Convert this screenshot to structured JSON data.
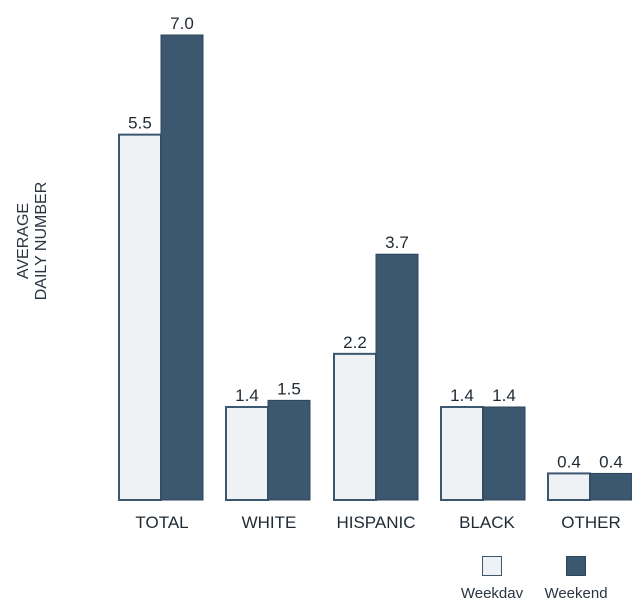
{
  "chart_data": {
    "type": "bar",
    "title": "",
    "ylabel": [
      "AVERAGE",
      "DAILY NUMBER"
    ],
    "xlabel": "",
    "categories": [
      "TOTAL",
      "WHITE",
      "HISPANIC",
      "BLACK",
      "OTHER"
    ],
    "series": [
      {
        "name": "Weekdav",
        "values": [
          5.5,
          1.4,
          2.2,
          1.4,
          0.4
        ],
        "value_labels": [
          "5.5",
          "1.4",
          "2.2",
          "1.4",
          "0.4"
        ],
        "color": "#eef2f4"
      },
      {
        "name": "Weekend",
        "values": [
          7.0,
          1.5,
          3.7,
          1.4,
          0.4
        ],
        "value_labels": [
          "7.0",
          "1.5",
          "3.7",
          "1.4",
          "0.4"
        ],
        "color": "#3c5770"
      }
    ],
    "ylim": [
      0,
      7.0
    ],
    "grid": false,
    "legend_position": "bottom-right"
  }
}
